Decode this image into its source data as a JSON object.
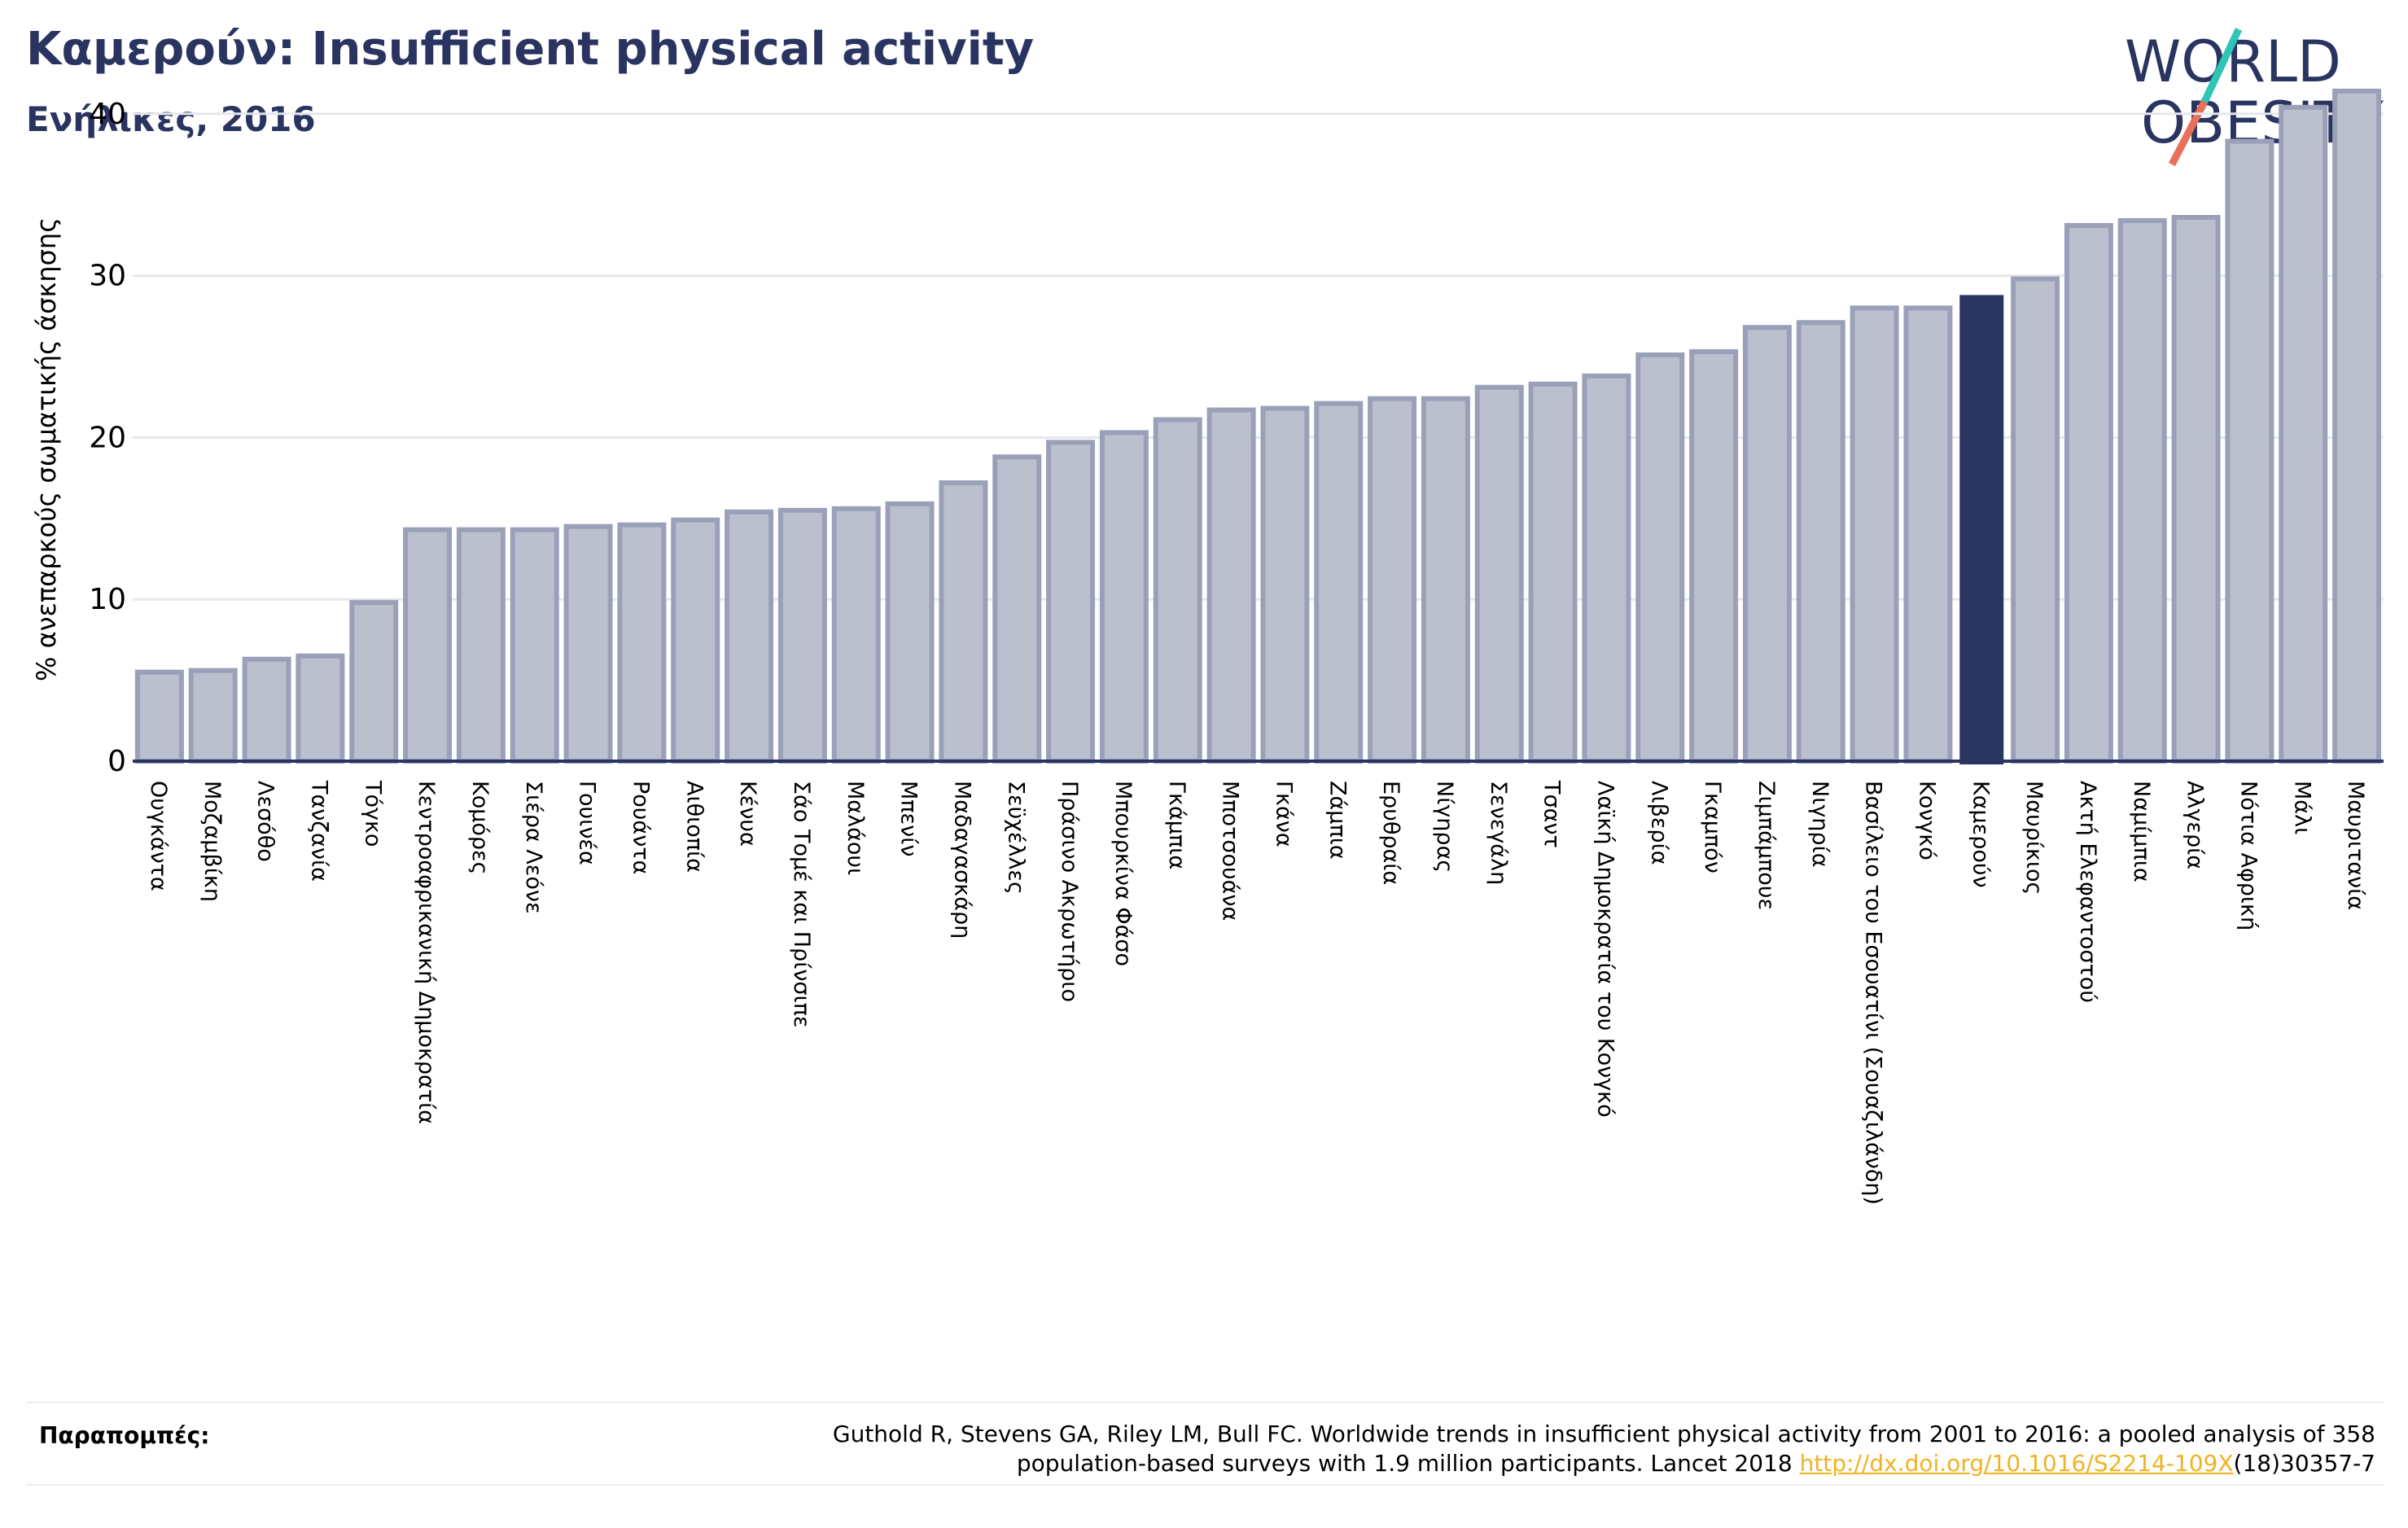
{
  "header": {
    "title": "Καμερούν: Insufficient physical activity",
    "subtitle": "Ενήλικες, 2016"
  },
  "logo": {
    "line1": "WORLD",
    "line2": "OBESITY",
    "colors": {
      "text": "#2a3460",
      "slash_teal": "#2ec4b6",
      "slash_coral": "#e8705a"
    }
  },
  "colors": {
    "bar_fill": "#bcbfcd",
    "bar_stroke": "#9ba0b9",
    "highlight_fill": "#2a3460",
    "axis": "#2a3460",
    "grid": "#e6e7ec"
  },
  "chart_data": {
    "type": "bar",
    "ylabel": "% ανεπαρκούς σωματικής άσκησης",
    "xlabel": "",
    "ylim": [
      0,
      42
    ],
    "yticks": [
      0,
      10,
      20,
      30,
      40
    ],
    "grid": true,
    "highlight": "Καμερούν",
    "categories": [
      "Ουγκάντα",
      "Μοζαμβίκη",
      "Λεσόθο",
      "Τανζανία",
      "Τόγκο",
      "Κεντροαφρικανική Δημοκρατία",
      "Κομόρες",
      "Σιέρα Λεόνε",
      "Γουινέα",
      "Ρουάντα",
      "Αιθιοπία",
      "Κένυα",
      "Σάο Τομέ και Πρίνσιπε",
      "Μαλάουι",
      "Μπενίν",
      "Μαδαγασκάρη",
      "Σεϋχέλλες",
      "Πράσινο Ακρωτήριο",
      "Μπουρκίνα Φάσο",
      "Γκάμπια",
      "Μποτσουάνα",
      "Γκάνα",
      "Ζάμπια",
      "Ερυθραία",
      "Νίγηρας",
      "Σενεγάλη",
      "Τσαντ",
      "Λαϊκή Δημοκρατία του Κονγκό",
      "Λιβερία",
      "Γκαμπόν",
      "Ζιμπάμπουε",
      "Νιγηρία",
      "Βασίλειο του Εσουατίνι (Σουαζιλάνδη)",
      "Κονγκό",
      "Καμερούν",
      "Μαυρίκιος",
      "Ακτή Ελεφαντοστού",
      "Ναμίμπια",
      "Αλγερία",
      "Νότια Αφρική",
      "Μάλι",
      "Μαυριτανία"
    ],
    "values": [
      5.5,
      5.6,
      6.3,
      6.5,
      9.8,
      14.3,
      14.3,
      14.3,
      14.5,
      14.6,
      14.9,
      15.4,
      15.5,
      15.6,
      15.9,
      17.2,
      18.8,
      19.7,
      20.3,
      21.1,
      21.7,
      21.8,
      22.1,
      22.4,
      22.4,
      23.1,
      23.3,
      23.8,
      25.1,
      25.3,
      26.8,
      27.1,
      28.0,
      28.0,
      28.8,
      29.8,
      33.1,
      33.4,
      33.6,
      38.3,
      40.4,
      41.4
    ]
  },
  "references": {
    "label": "Παραπομπές:",
    "line1": "Guthold R, Stevens GA, Riley LM, Bull FC. Worldwide trends in insufficient physical activity from 2001 to 2016: a pooled analysis of 358",
    "line2_prefix": "population-based surveys with 1.9 million participants. Lancet 2018 ",
    "link": "http://dx.doi.org/10.1016/S2214-109X",
    "line2_suffix": "(18)30357-7"
  }
}
